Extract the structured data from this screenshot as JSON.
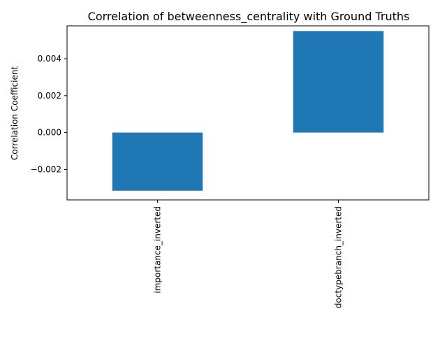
{
  "chart_data": {
    "type": "bar",
    "title": "Correlation of betweenness_centrality with Ground Truths",
    "xlabel": "",
    "ylabel": "Correlation Coefficient",
    "categories": [
      "importance_inverted",
      "doctypebranch_inverted"
    ],
    "values": [
      -0.00315,
      0.0055
    ],
    "ylim": [
      -0.00365,
      0.00578
    ],
    "yticks": [
      -0.002,
      0.0,
      0.002,
      0.004
    ],
    "ytick_labels": [
      "−0.002",
      "0.000",
      "0.002",
      "0.004"
    ],
    "grid": false,
    "legend": "none",
    "bar_color": "#1f77b4"
  }
}
